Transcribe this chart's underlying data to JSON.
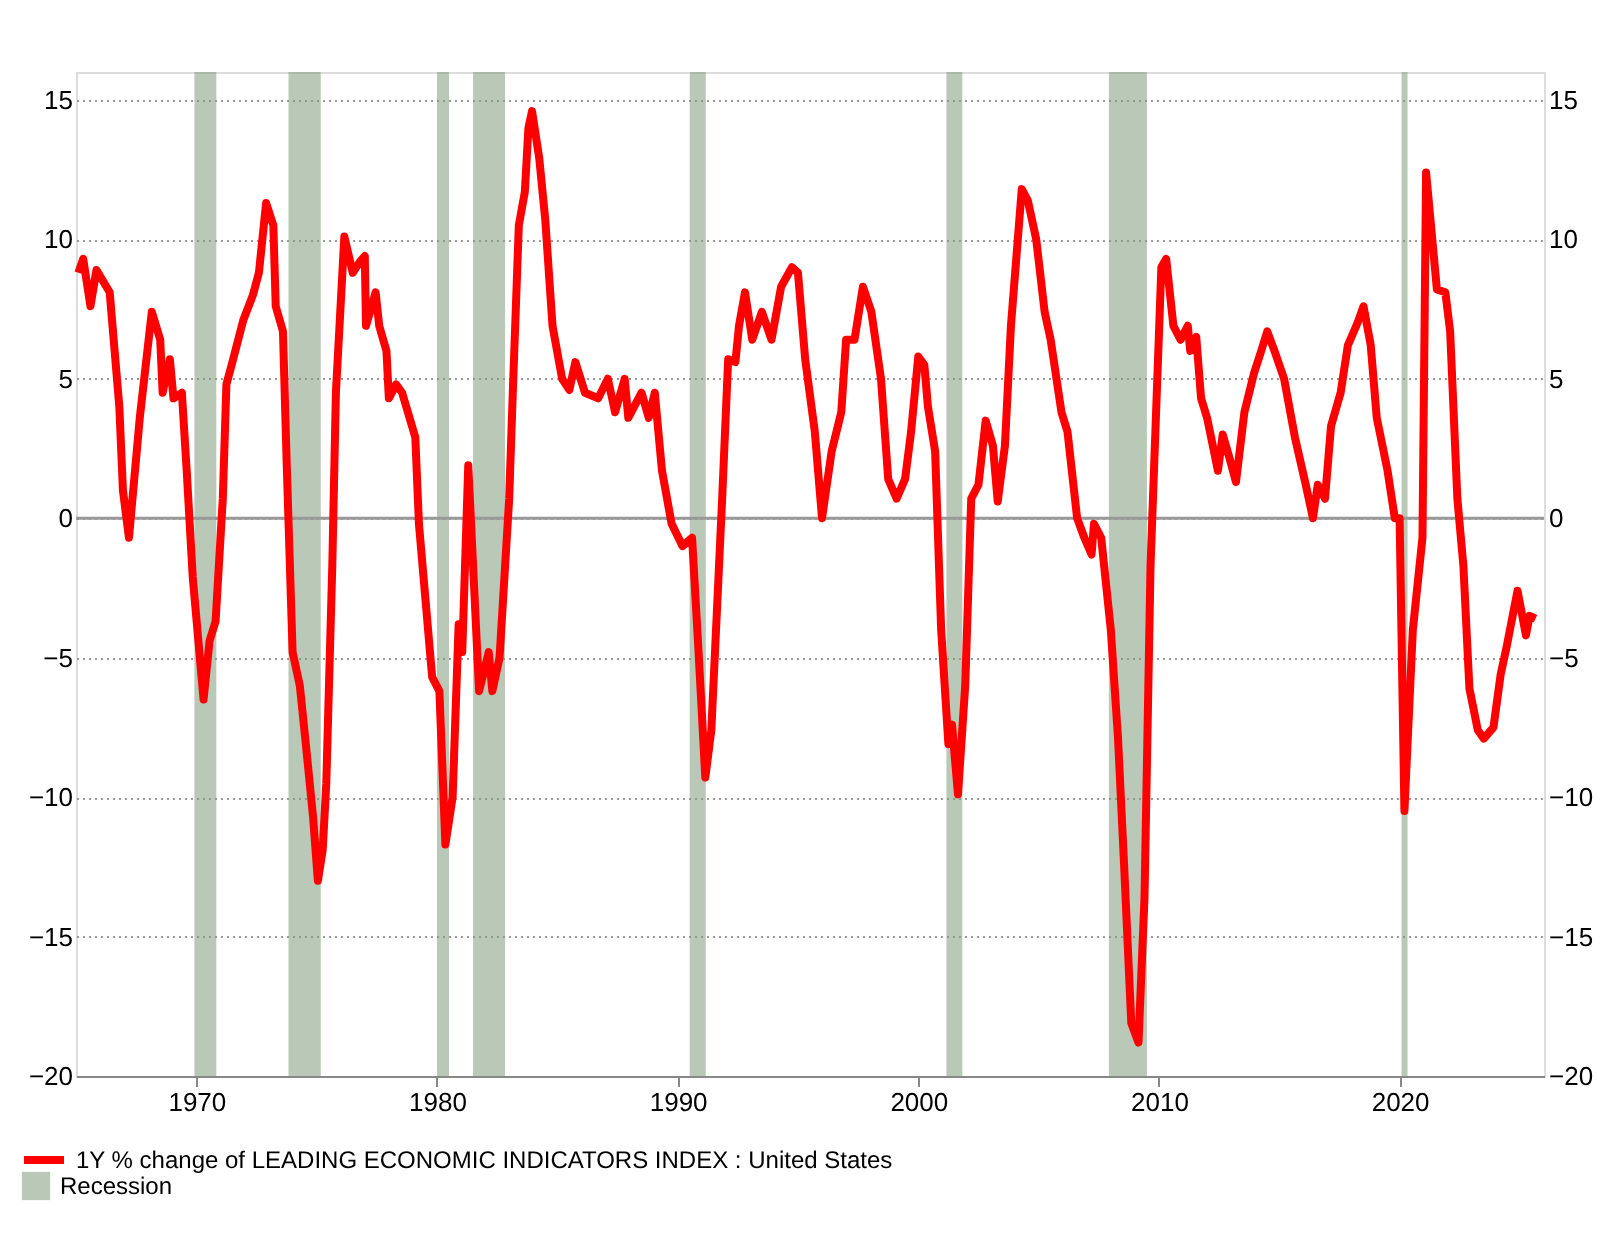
{
  "chart_data": {
    "type": "line",
    "xlim": [
      1965,
      2026
    ],
    "xticks": [
      1970,
      1980,
      1990,
      2000,
      2010,
      2020
    ],
    "ylim": [
      -20,
      16
    ],
    "yticks": [
      -20,
      -15,
      -10,
      -5,
      0,
      5,
      10,
      15
    ],
    "y2lim": [
      -20,
      16
    ],
    "y2ticks": [
      -20,
      -15,
      -10,
      -5,
      0,
      5,
      10,
      15
    ],
    "grid": "y",
    "legend": "bottom left",
    "line_style": "solid",
    "marker": "none",
    "series": [
      {
        "name": "1Y % change of LEADING ECONOMIC INDICATORS INDEX : United States",
        "color": "#ff0000",
        "x": [
          1965.1,
          1965.3,
          1965.6,
          1965.85,
          1966.4,
          1966.8,
          1966.95,
          1967.2,
          1967.65,
          1968.15,
          1968.5,
          1968.6,
          1968.9,
          1969.05,
          1969.4,
          1969.6,
          1969.85,
          1970.3,
          1970.55,
          1970.8,
          1971.1,
          1971.25,
          1971.5,
          1971.95,
          1972.35,
          1972.6,
          1972.9,
          1973.2,
          1973.3,
          1973.6,
          1973.75,
          1974.0,
          1974.3,
          1974.55,
          1974.85,
          1975.05,
          1975.25,
          1975.4,
          1975.65,
          1975.8,
          1976.15,
          1976.5,
          1976.8,
          1977.0,
          1977.05,
          1977.45,
          1977.6,
          1977.9,
          1978.0,
          1978.3,
          1978.55,
          1979.1,
          1979.25,
          1979.8,
          1980.1,
          1980.35,
          1980.65,
          1980.9,
          1981.05,
          1981.3,
          1981.75,
          1982.15,
          1982.3,
          1982.6,
          1983.0,
          1983.15,
          1983.4,
          1983.65,
          1983.8,
          1983.95,
          1984.25,
          1984.5,
          1984.8,
          1985.2,
          1985.5,
          1985.75,
          1986.15,
          1986.7,
          1987.1,
          1987.4,
          1987.8,
          1987.95,
          1988.5,
          1988.8,
          1989.05,
          1989.35,
          1989.75,
          1990.2,
          1990.6,
          1990.85,
          1991.15,
          1991.4,
          1991.85,
          1992.1,
          1992.4,
          1992.55,
          1992.8,
          1993.1,
          1993.5,
          1993.9,
          1994.3,
          1994.75,
          1995.0,
          1995.3,
          1995.7,
          1996.0,
          1996.4,
          1996.8,
          1997.0,
          1997.35,
          1997.7,
          1998.05,
          1998.45,
          1998.75,
          1999.1,
          1999.45,
          1999.7,
          2000.0,
          2000.25,
          2000.4,
          2000.7,
          2000.95,
          2001.25,
          2001.4,
          2001.65,
          2001.95,
          2002.2,
          2002.5,
          2002.8,
          2003.1,
          2003.3,
          2003.6,
          2003.85,
          2004.3,
          2004.55,
          2004.9,
          2005.25,
          2005.5,
          2005.95,
          2006.2,
          2006.6,
          2006.9,
          2007.2,
          2007.3,
          2007.6,
          2008.0,
          2008.3,
          2008.55,
          2008.85,
          2009.15,
          2009.4,
          2009.65,
          2010.1,
          2010.3,
          2010.6,
          2010.9,
          2011.2,
          2011.3,
          2011.55,
          2011.75,
          2012.0,
          2012.45,
          2012.65,
          2012.95,
          2013.2,
          2013.55,
          2013.95,
          2014.25,
          2014.5,
          2014.8,
          2015.2,
          2015.65,
          2016.1,
          2016.4,
          2016.6,
          2016.9,
          2017.15,
          2017.55,
          2017.85,
          2018.25,
          2018.5,
          2018.8,
          2019.05,
          2019.5,
          2019.8,
          2020.0,
          2020.2,
          2020.55,
          2020.95,
          2021.1,
          2021.55,
          2021.9,
          2022.1,
          2022.4,
          2022.65,
          2022.9,
          2023.25,
          2023.5,
          2023.9,
          2024.2,
          2024.45,
          2024.9,
          2025.25,
          2025.4,
          2025.65
        ],
        "values": [
          8.8,
          9.3,
          7.6,
          8.9,
          8.1,
          4.0,
          1.0,
          -0.7,
          3.6,
          7.4,
          6.4,
          4.5,
          5.7,
          4.3,
          4.5,
          1.7,
          -2.1,
          -6.5,
          -4.4,
          -3.7,
          0.7,
          4.8,
          5.6,
          7.1,
          8.0,
          8.8,
          11.3,
          10.5,
          7.6,
          6.7,
          2.1,
          -4.8,
          -6.0,
          -8.1,
          -10.7,
          -13.0,
          -11.9,
          -9.5,
          -1.7,
          4.5,
          10.1,
          8.8,
          9.2,
          9.4,
          6.9,
          8.1,
          6.9,
          6.0,
          4.3,
          4.8,
          4.5,
          2.9,
          -0.2,
          -5.7,
          -6.2,
          -11.7,
          -10.0,
          -3.8,
          -4.8,
          1.9,
          -6.2,
          -4.8,
          -6.2,
          -5.0,
          0.7,
          4.5,
          10.5,
          11.7,
          14.0,
          14.6,
          12.9,
          10.7,
          6.9,
          5.0,
          4.6,
          5.6,
          4.5,
          4.3,
          5.0,
          3.8,
          5.0,
          3.6,
          4.5,
          3.6,
          4.5,
          1.7,
          -0.2,
          -1.0,
          -0.7,
          -4.5,
          -9.3,
          -7.6,
          0.7,
          5.7,
          5.6,
          6.9,
          8.1,
          6.4,
          7.4,
          6.4,
          8.3,
          9.0,
          8.8,
          5.7,
          3.1,
          0.0,
          2.4,
          3.8,
          6.4,
          6.4,
          8.3,
          7.4,
          5.0,
          1.4,
          0.7,
          1.4,
          3.1,
          5.8,
          5.5,
          4.0,
          2.4,
          -4.0,
          -8.1,
          -7.4,
          -9.9,
          -6.0,
          0.7,
          1.2,
          3.5,
          2.6,
          0.6,
          2.6,
          6.9,
          11.8,
          11.4,
          10.0,
          7.4,
          6.4,
          3.8,
          3.1,
          0.0,
          -0.7,
          -1.3,
          -0.2,
          -0.7,
          -4.0,
          -7.9,
          -12.4,
          -18.1,
          -18.8,
          -13.6,
          -1.7,
          9.0,
          9.3,
          6.9,
          6.4,
          6.9,
          6.0,
          6.5,
          4.3,
          3.6,
          1.7,
          3.0,
          2.1,
          1.3,
          3.8,
          5.2,
          6.0,
          6.7,
          6.0,
          5.0,
          2.9,
          1.2,
          0.0,
          1.2,
          0.7,
          3.3,
          4.5,
          6.2,
          7.0,
          7.6,
          6.2,
          3.6,
          1.7,
          0.0,
          0.0,
          -10.5,
          -4.0,
          -0.7,
          12.4,
          8.2,
          8.1,
          6.7,
          0.7,
          -1.7,
          -6.1,
          -7.6,
          -7.9,
          -7.5,
          -5.6,
          -4.6,
          -2.6,
          -4.2,
          -3.5,
          -3.6
        ]
      }
    ],
    "bands": [
      {
        "axis": "x",
        "from": 1969.92,
        "to": 1970.83,
        "label": "Recession",
        "color": "#7f9a7c"
      },
      {
        "axis": "x",
        "from": 1973.83,
        "to": 1975.17,
        "color": "#7f9a7c"
      },
      {
        "axis": "x",
        "from": 1980.0,
        "to": 1980.5,
        "color": "#7f9a7c"
      },
      {
        "axis": "x",
        "from": 1981.5,
        "to": 1982.83,
        "color": "#7f9a7c"
      },
      {
        "axis": "x",
        "from": 1990.5,
        "to": 1991.17,
        "color": "#7f9a7c"
      },
      {
        "axis": "x",
        "from": 2001.17,
        "to": 2001.83,
        "color": "#7f9a7c"
      },
      {
        "axis": "x",
        "from": 2007.92,
        "to": 2009.5,
        "color": "#7f9a7c"
      },
      {
        "axis": "x",
        "from": 2020.08,
        "to": 2020.33,
        "color": "#7f9a7c"
      }
    ],
    "ref_lines": [
      {
        "axis": "y",
        "value": 0,
        "color": "#999999"
      }
    ]
  }
}
